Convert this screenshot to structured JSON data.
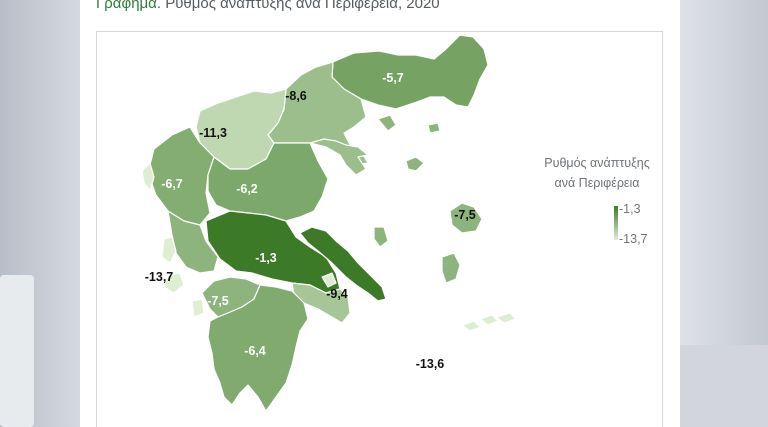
{
  "title": {
    "lead": "Γράφημα.",
    "text": " Ρυθμός ανάπτυξης ανά Περιφέρεια, 2020"
  },
  "legend": {
    "title_line1": "Ρυθμός ανάπτυξης",
    "title_line2": "ανά Περιφέρεια",
    "max_label": "-1,3",
    "min_label": "-13,7",
    "color_max": "#3d7a28",
    "color_min": "#dfeed2"
  },
  "labels": {
    "amth": "-5,7",
    "cmac": "-8,6",
    "wmac": "-11,3",
    "epir": "-6,7",
    "thes": "-6,2",
    "ster": "-1,3",
    "naeg": "-7,5",
    "ion": "-13,7",
    "att": "-9,4",
    "wgr": "-7,5",
    "pel": "-6,4",
    "saeg": "-13,6"
  },
  "chart_data": {
    "type": "choropleth",
    "title": "Ρυθμός ανάπτυξης ανά Περιφέρεια, 2020",
    "legend_title": "Ρυθμός ανάπτυξης ανά Περιφέρεια",
    "range": [
      -13.7,
      -1.3
    ],
    "regions": [
      {
        "value": -5.7
      },
      {
        "value": -8.6
      },
      {
        "value": -11.3
      },
      {
        "value": -6.7
      },
      {
        "value": -6.2
      },
      {
        "value": -1.3
      },
      {
        "value": -7.5
      },
      {
        "value": -13.7
      },
      {
        "value": -9.4
      },
      {
        "value": -7.5
      },
      {
        "value": -6.4
      },
      {
        "value": -13.6
      }
    ]
  }
}
